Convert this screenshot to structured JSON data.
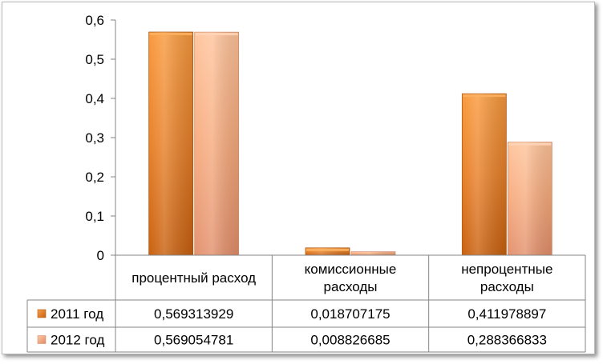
{
  "chart_data": {
    "type": "bar",
    "categories": [
      [
        "процентный расход"
      ],
      [
        "комиссионные",
        "расходы"
      ],
      [
        "непроцентные",
        "расходы"
      ]
    ],
    "series": [
      {
        "name": "2011 год",
        "values": [
          0.569313929,
          0.018707175,
          0.411978897
        ],
        "labels": [
          "0,569313929",
          "0,018707175",
          "0,411978897"
        ],
        "color": "#e37a1e"
      },
      {
        "name": "2012 год",
        "values": [
          0.569054781,
          0.008826685,
          0.288366833
        ],
        "labels": [
          "0,569054781",
          "0,008826685",
          "0,288366833"
        ],
        "color": "#f4a678"
      }
    ],
    "ylim": [
      0,
      0.6
    ],
    "yticks": [
      0,
      0.1,
      0.2,
      0.3,
      0.4,
      0.5,
      0.6
    ],
    "ytick_labels": [
      "0",
      "0,1",
      "0,2",
      "0,3",
      "0,4",
      "0,5",
      "0,6"
    ],
    "grid": false,
    "legend": "data-table",
    "title": "",
    "xlabel": "",
    "ylabel": ""
  }
}
